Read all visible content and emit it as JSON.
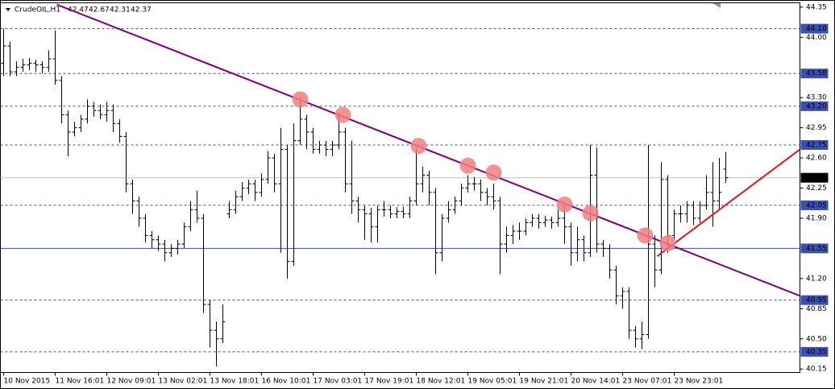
{
  "chart_data": {
    "type": "ohlc",
    "symbol": "CrudeOIL,H1",
    "header_ohlc": [
      42.47,
      42.67,
      42.31,
      42.37
    ],
    "color": "#000000",
    "xlim": [
      -0.5,
      123.5
    ],
    "ylim": [
      40.11,
      44.4
    ],
    "yticks": [
      {
        "value": 44.35,
        "label": "44.35"
      },
      {
        "value": 44.0,
        "label": "44.00"
      },
      {
        "value": 43.3,
        "label": "43.30"
      },
      {
        "value": 42.95,
        "label": "42.95"
      },
      {
        "value": 42.6,
        "label": "42.60"
      },
      {
        "value": 42.25,
        "label": "42.25"
      },
      {
        "value": 41.9,
        "label": "41.90"
      },
      {
        "value": 41.2,
        "label": "41.20"
      },
      {
        "value": 40.85,
        "label": "40.85"
      },
      {
        "value": 40.5,
        "label": "40.50"
      },
      {
        "value": 40.15,
        "label": "40.15"
      }
    ],
    "xticks": [
      {
        "value": 0,
        "label": "10 Nov 2015"
      },
      {
        "value": 8,
        "label": "11 Nov 16:01"
      },
      {
        "value": 16,
        "label": "12 Nov 09:01"
      },
      {
        "value": 24,
        "label": "13 Nov 02:01"
      },
      {
        "value": 32,
        "label": "13 Nov 18:01"
      },
      {
        "value": 40,
        "label": "16 Nov 10:01"
      },
      {
        "value": 48,
        "label": "17 Nov 03:01"
      },
      {
        "value": 56,
        "label": "17 Nov 19:01"
      },
      {
        "value": 64,
        "label": "18 Nov 12:01"
      },
      {
        "value": 72,
        "label": "19 Nov 05:01"
      },
      {
        "value": 80,
        "label": "19 Nov 21:01"
      },
      {
        "value": 88,
        "label": "20 Nov 14:01"
      },
      {
        "value": 96,
        "label": "23 Nov 07:01"
      },
      {
        "value": 104,
        "label": "23 Nov 23:01"
      }
    ],
    "levels": [
      {
        "value": 44.1,
        "label": "44.10",
        "style": "dashed"
      },
      {
        "value": 43.58,
        "label": "43.58",
        "style": "dashed"
      },
      {
        "value": 43.2,
        "label": "43.20",
        "style": "dashed"
      },
      {
        "value": 42.75,
        "label": "42.75",
        "style": "dashed"
      },
      {
        "value": 42.05,
        "label": "42.05",
        "style": "dashed"
      },
      {
        "value": 41.55,
        "label": "41.55",
        "style": "solid"
      },
      {
        "value": 40.95,
        "label": "40.95",
        "style": "dashed"
      },
      {
        "value": 40.35,
        "label": "40.35",
        "style": "dashed"
      }
    ],
    "level_color": "#3a4fb0",
    "last": {
      "value": 42.37,
      "label": "42.37"
    },
    "trendlines": [
      {
        "color": "#800080",
        "points": [
          [
            8.25,
            44.38
          ],
          [
            123.5,
            41.0
          ]
        ]
      },
      {
        "color": "#e8141e",
        "points": [
          [
            101.375,
            41.46
          ],
          [
            123.5,
            42.7
          ]
        ]
      }
    ],
    "touches": {
      "color": "#f08080",
      "x": [
        46,
        52.625,
        64.375,
        72,
        76,
        87,
        91,
        99.5,
        103
      ],
      "y": [
        43.28,
        43.1,
        42.74,
        42.51,
        42.43,
        42.06,
        41.96,
        41.7,
        41.61
      ]
    },
    "bars": [
      [
        43.7,
        44.1,
        43.55,
        43.9
      ],
      [
        43.9,
        43.95,
        43.55,
        43.6
      ],
      [
        43.6,
        43.72,
        43.55,
        43.65
      ],
      [
        43.65,
        43.75,
        43.6,
        43.68
      ],
      [
        43.68,
        43.76,
        43.62,
        43.7
      ],
      [
        43.7,
        43.74,
        43.6,
        43.68
      ],
      [
        43.68,
        43.72,
        43.58,
        43.65
      ],
      [
        43.65,
        43.85,
        43.6,
        43.75
      ],
      [
        43.75,
        44.08,
        43.45,
        43.5
      ],
      [
        43.5,
        43.55,
        43.0,
        43.1
      ],
      [
        43.1,
        43.15,
        42.62,
        42.9
      ],
      [
        42.9,
        43.02,
        42.85,
        42.95
      ],
      [
        42.95,
        43.1,
        42.9,
        43.05
      ],
      [
        43.05,
        43.28,
        43.0,
        43.2
      ],
      [
        43.2,
        43.25,
        43.08,
        43.15
      ],
      [
        43.15,
        43.22,
        43.05,
        43.1
      ],
      [
        43.1,
        43.25,
        43.02,
        43.15
      ],
      [
        43.15,
        43.22,
        42.9,
        43.0
      ],
      [
        43.0,
        43.05,
        42.78,
        42.85
      ],
      [
        42.85,
        42.9,
        42.2,
        42.3
      ],
      [
        42.3,
        42.35,
        41.95,
        42.1
      ],
      [
        42.1,
        42.15,
        41.8,
        41.9
      ],
      [
        41.9,
        41.95,
        41.62,
        41.7
      ],
      [
        41.7,
        41.75,
        41.55,
        41.65
      ],
      [
        41.65,
        41.7,
        41.52,
        41.6
      ],
      [
        41.6,
        41.65,
        41.4,
        41.5
      ],
      [
        41.5,
        41.6,
        41.45,
        41.55
      ],
      [
        41.55,
        41.65,
        41.48,
        41.6
      ],
      [
        41.6,
        41.85,
        41.55,
        41.8
      ],
      [
        41.8,
        42.1,
        41.75,
        42.0
      ],
      [
        42.0,
        42.22,
        41.85,
        41.9
      ],
      [
        41.9,
        41.95,
        40.8,
        40.9
      ],
      [
        40.9,
        40.95,
        40.4,
        40.6
      ],
      [
        40.6,
        40.7,
        40.18,
        40.5
      ],
      [
        40.5,
        40.9,
        40.45,
        40.7
      ],
      [
        41.95,
        42.1,
        41.9,
        42.0
      ],
      [
        42.0,
        42.22,
        41.95,
        42.15
      ],
      [
        42.15,
        42.32,
        42.1,
        42.25
      ],
      [
        42.25,
        42.35,
        42.18,
        42.3
      ],
      [
        42.3,
        42.35,
        42.1,
        42.2
      ],
      [
        42.2,
        42.42,
        42.15,
        42.35
      ],
      [
        42.35,
        42.68,
        42.3,
        42.6
      ],
      [
        42.6,
        42.65,
        42.2,
        42.3
      ],
      [
        42.3,
        42.95,
        41.5,
        42.7
      ],
      [
        42.7,
        42.75,
        41.2,
        41.4
      ],
      [
        41.4,
        43.0,
        41.35,
        42.8
      ],
      [
        42.8,
        43.3,
        42.75,
        43.05
      ],
      [
        43.05,
        43.1,
        42.7,
        42.9
      ],
      [
        42.9,
        42.95,
        42.65,
        42.7
      ],
      [
        42.7,
        42.8,
        42.65,
        42.75
      ],
      [
        42.75,
        42.8,
        42.62,
        42.7
      ],
      [
        42.7,
        42.8,
        42.62,
        42.75
      ],
      [
        42.75,
        43.12,
        42.7,
        42.9
      ],
      [
        42.9,
        42.95,
        42.2,
        42.3
      ],
      [
        42.3,
        42.8,
        41.95,
        42.1
      ],
      [
        42.1,
        42.15,
        41.85,
        42.0
      ],
      [
        42.0,
        42.05,
        41.65,
        41.95
      ],
      [
        41.95,
        42.02,
        41.62,
        41.8
      ],
      [
        41.8,
        42.05,
        41.62,
        42.0
      ],
      [
        42.0,
        42.1,
        41.92,
        42.0
      ],
      [
        42.0,
        42.05,
        41.9,
        41.95
      ],
      [
        41.95,
        42.03,
        41.9,
        41.98
      ],
      [
        41.98,
        42.03,
        41.9,
        41.95
      ],
      [
        41.95,
        42.15,
        41.9,
        42.1
      ],
      [
        42.1,
        42.72,
        42.05,
        42.3
      ],
      [
        42.3,
        42.5,
        42.2,
        42.4
      ],
      [
        42.4,
        42.45,
        42.05,
        42.2
      ],
      [
        42.2,
        42.25,
        41.25,
        41.5
      ],
      [
        41.5,
        41.95,
        41.4,
        41.9
      ],
      [
        41.9,
        42.1,
        41.85,
        42.0
      ],
      [
        42.0,
        42.15,
        41.95,
        42.1
      ],
      [
        42.1,
        42.3,
        42.05,
        42.25
      ],
      [
        42.25,
        42.4,
        42.2,
        42.3
      ],
      [
        42.3,
        42.38,
        42.22,
        42.3
      ],
      [
        42.3,
        42.35,
        42.1,
        42.2
      ],
      [
        42.2,
        42.25,
        42.05,
        42.15
      ],
      [
        42.15,
        42.3,
        42.0,
        42.1
      ],
      [
        42.1,
        42.15,
        41.25,
        41.6
      ],
      [
        41.6,
        41.8,
        41.5,
        41.7
      ],
      [
        41.7,
        41.82,
        41.6,
        41.75
      ],
      [
        41.75,
        41.85,
        41.65,
        41.75
      ],
      [
        41.75,
        41.9,
        41.7,
        41.85
      ],
      [
        41.85,
        41.95,
        41.8,
        41.9
      ],
      [
        41.9,
        41.95,
        41.78,
        41.85
      ],
      [
        41.85,
        41.93,
        41.8,
        41.88
      ],
      [
        41.88,
        41.92,
        41.78,
        41.85
      ],
      [
        41.85,
        42.0,
        41.8,
        41.9
      ],
      [
        41.9,
        42.05,
        41.6,
        41.8
      ],
      [
        41.8,
        41.85,
        41.35,
        41.5
      ],
      [
        41.5,
        41.8,
        41.4,
        41.65
      ],
      [
        41.65,
        41.7,
        41.4,
        41.5
      ],
      [
        41.5,
        42.75,
        41.45,
        42.4
      ],
      [
        42.4,
        42.72,
        41.5,
        41.6
      ],
      [
        41.6,
        41.65,
        41.45,
        41.55
      ],
      [
        41.55,
        41.6,
        41.2,
        41.3
      ],
      [
        41.3,
        41.35,
        40.9,
        41.0
      ],
      [
        41.0,
        41.1,
        40.85,
        41.05
      ],
      [
        41.05,
        41.1,
        40.5,
        40.6
      ],
      [
        40.6,
        40.65,
        40.4,
        40.5
      ],
      [
        40.5,
        40.7,
        40.38,
        40.55
      ],
      [
        40.55,
        42.75,
        40.5,
        41.6
      ],
      [
        41.6,
        41.7,
        41.1,
        41.3
      ],
      [
        41.3,
        42.55,
        41.25,
        42.35
      ],
      [
        42.35,
        42.4,
        41.5,
        41.7
      ],
      [
        41.7,
        42.0,
        41.65,
        41.95
      ],
      [
        41.95,
        42.05,
        41.85,
        41.95
      ],
      [
        41.95,
        42.1,
        41.85,
        42.05
      ],
      [
        42.05,
        42.1,
        41.82,
        41.9
      ],
      [
        41.9,
        42.1,
        41.85,
        42.05
      ],
      [
        42.05,
        42.4,
        42.0,
        42.2
      ],
      [
        42.2,
        42.55,
        41.8,
        42.1
      ],
      [
        42.1,
        42.6,
        42.0,
        42.2
      ],
      [
        42.47,
        42.67,
        42.31,
        42.37
      ]
    ]
  }
}
